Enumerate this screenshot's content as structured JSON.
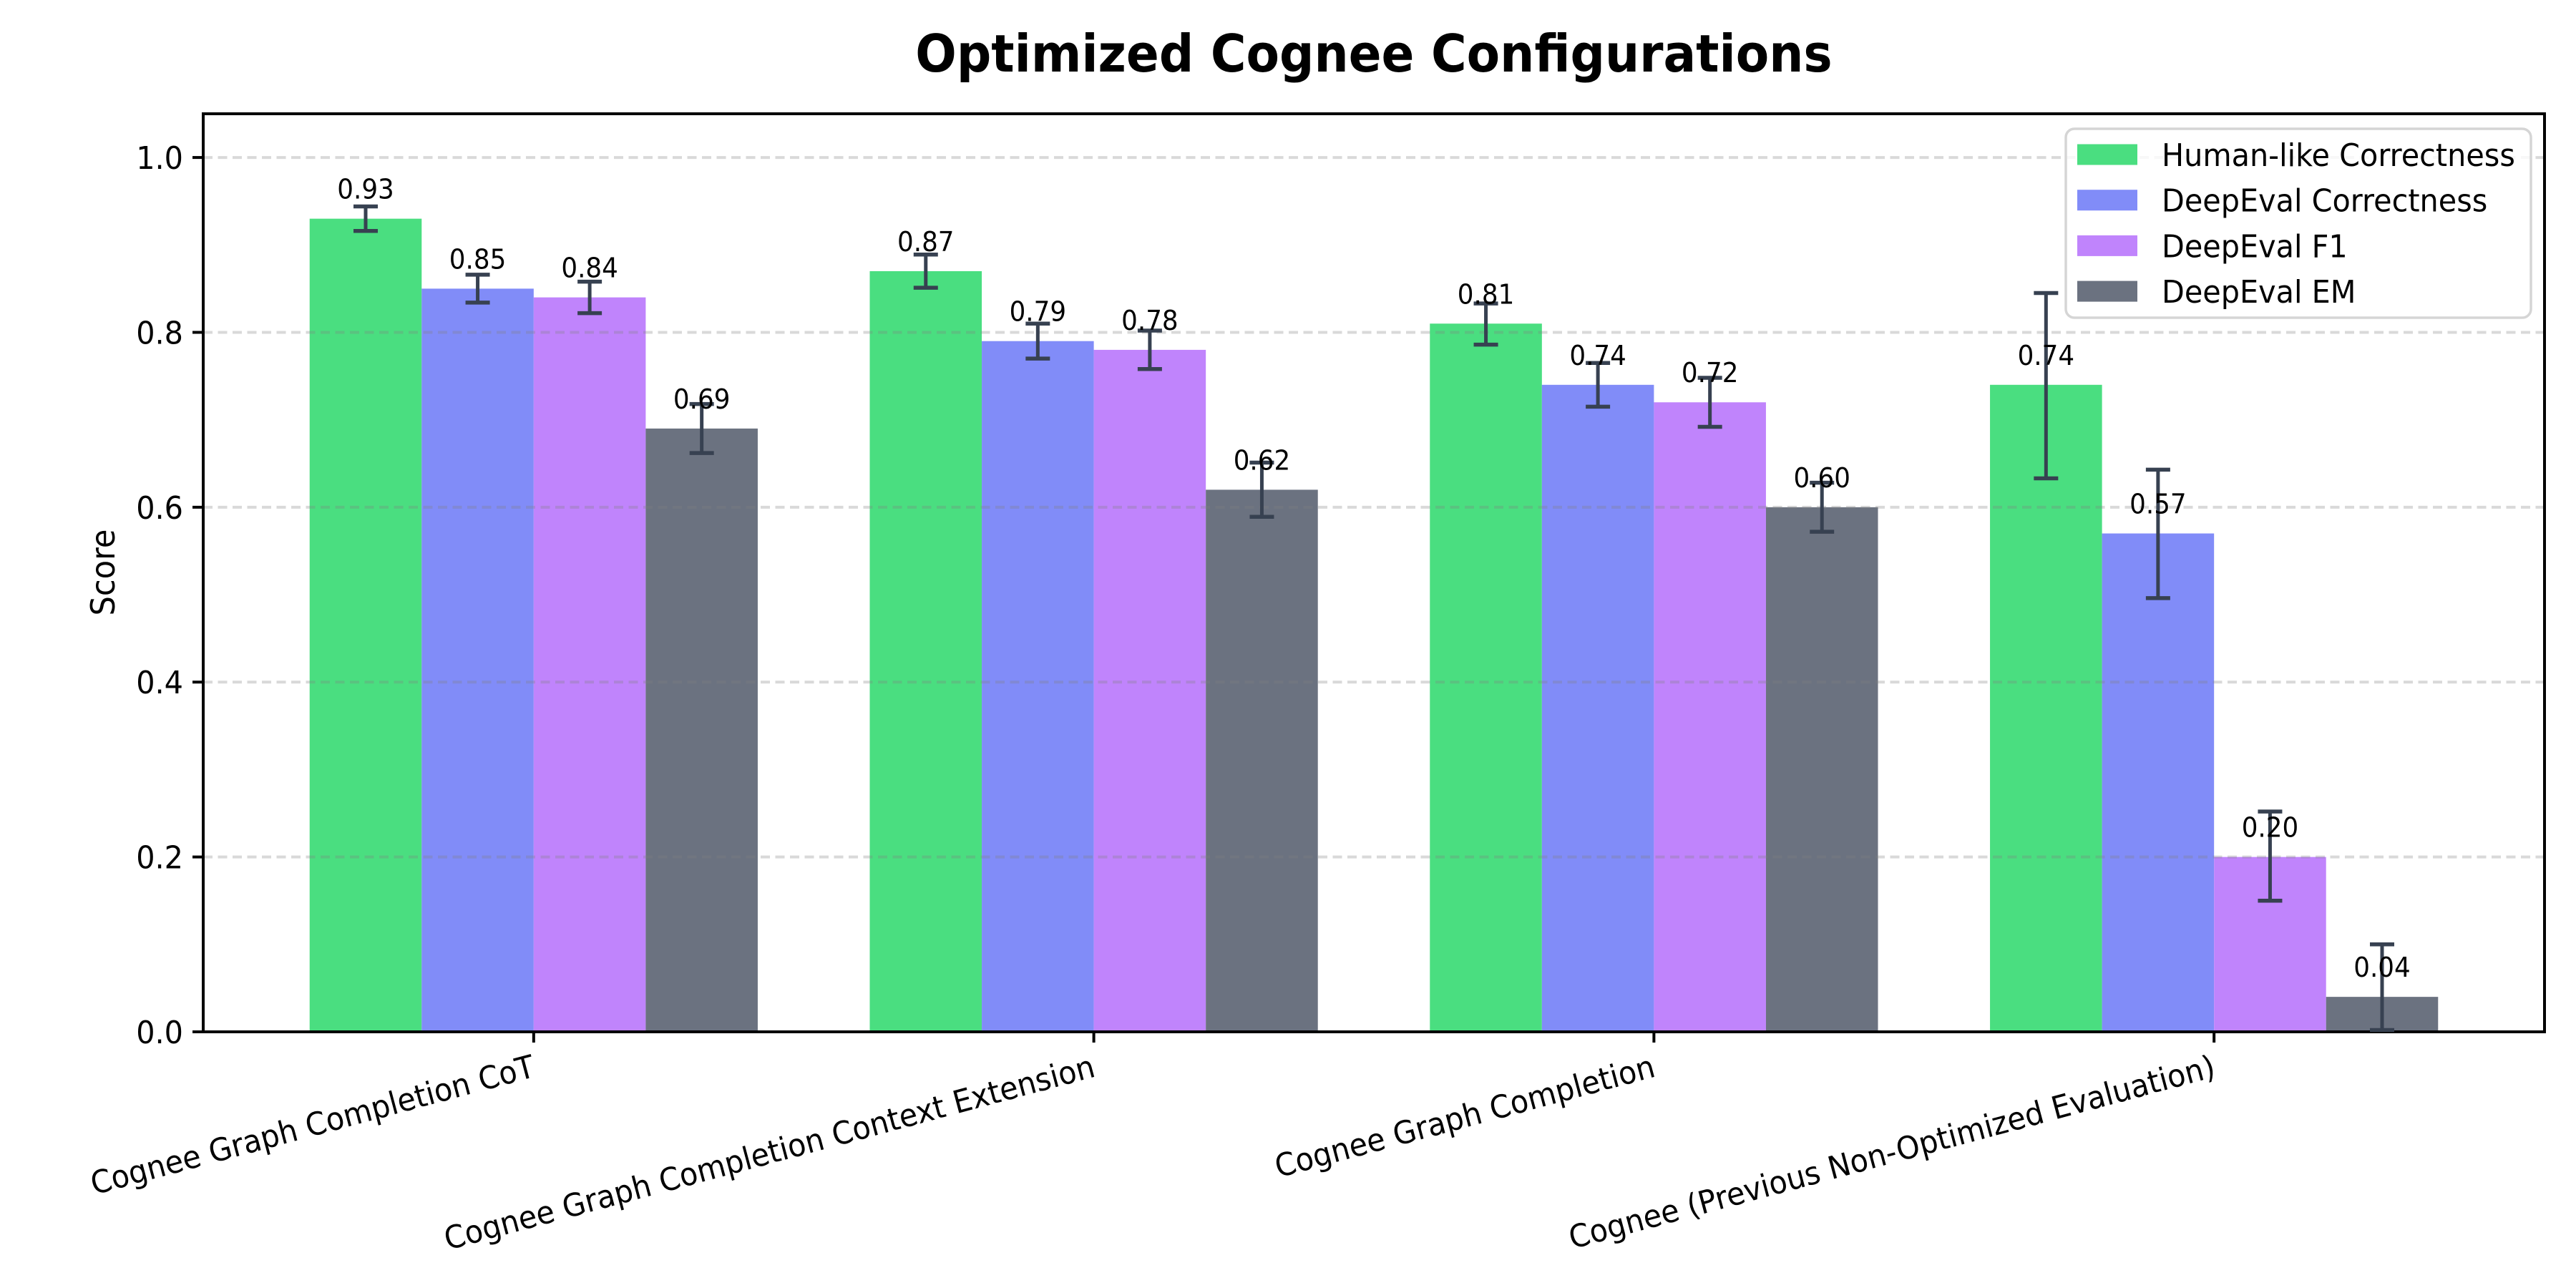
{
  "chart_data": {
    "type": "bar",
    "title": "Optimized Cognee Configurations",
    "xlabel": "",
    "ylabel": "Score",
    "ylim": [
      0,
      1.05
    ],
    "yticks": [
      0.0,
      0.2,
      0.4,
      0.6,
      0.8,
      1.0
    ],
    "ytick_labels": [
      "0.0",
      "0.2",
      "0.4",
      "0.6",
      "0.8",
      "1.0"
    ],
    "grid": "dashed horizontal",
    "legend_position": "upper right",
    "categories": [
      "Cognee Graph Completion CoT",
      "Cognee Graph Completion Context Extension",
      "Cognee Graph Completion",
      "Cognee (Previous Non-Optimized Evaluation)"
    ],
    "series": [
      {
        "name": "Human-like Correctness",
        "color": "#4ade80",
        "values": [
          0.93,
          0.87,
          0.81,
          0.74
        ],
        "labels": [
          "0.93",
          "0.87",
          "0.81",
          "0.74"
        ],
        "err_minus": [
          0.014,
          0.019,
          0.024,
          0.107
        ],
        "err_plus": [
          0.014,
          0.019,
          0.023,
          0.105
        ]
      },
      {
        "name": "DeepEval Correctness",
        "color": "#818cf8",
        "values": [
          0.85,
          0.79,
          0.74,
          0.57
        ],
        "labels": [
          "0.85",
          "0.79",
          "0.74",
          "0.57"
        ],
        "err_minus": [
          0.016,
          0.02,
          0.025,
          0.074
        ],
        "err_plus": [
          0.016,
          0.02,
          0.025,
          0.073
        ]
      },
      {
        "name": "DeepEval F1",
        "color": "#c084fc",
        "values": [
          0.84,
          0.78,
          0.72,
          0.2
        ],
        "labels": [
          "0.84",
          "0.78",
          "0.72",
          "0.20"
        ],
        "err_minus": [
          0.018,
          0.022,
          0.028,
          0.05
        ],
        "err_plus": [
          0.018,
          0.022,
          0.028,
          0.052
        ]
      },
      {
        "name": "DeepEval EM",
        "color": "#6b7280",
        "values": [
          0.69,
          0.62,
          0.6,
          0.04
        ],
        "labels": [
          "0.69",
          "0.62",
          "0.60",
          "0.04"
        ],
        "err_minus": [
          0.028,
          0.031,
          0.028,
          0.038
        ],
        "err_plus": [
          0.028,
          0.031,
          0.028,
          0.06
        ]
      }
    ],
    "error_bar_color": "#374151",
    "grid_color": "rgba(128,128,128,0.30)",
    "text_color": "#000000"
  }
}
